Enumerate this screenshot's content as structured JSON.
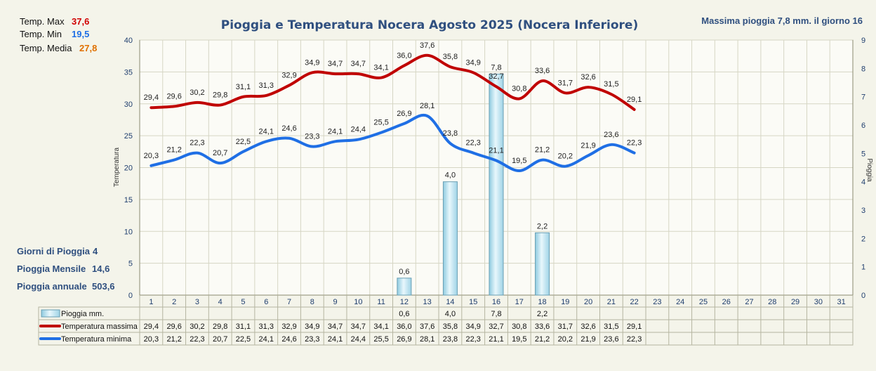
{
  "header": {
    "title": "Pioggia e Temperatura Nocera Agosto 2025 (Nocera Inferiore)",
    "max_rain": "Massima pioggia    7,8  mm. il giorno 16"
  },
  "summary": {
    "tmax_label": "Temp. Max",
    "tmax_value": "37,6",
    "tmin_label": "Temp.  Min",
    "tmin_value": "19,5",
    "tavg_label": "Temp. Media",
    "tavg_value": "27,8",
    "rain_days_label": "Giorni di Pioggia",
    "rain_days_value": "4",
    "rain_month_label": "Pioggia Mensile",
    "rain_month_value": "14,6",
    "rain_year_label": "Pioggia annuale",
    "rain_year_value": "503,6"
  },
  "colors": {
    "max_line": "#c00000",
    "min_line": "#1f6fe5",
    "bar_fill": "#bfe6f2",
    "title": "#2f4f7f",
    "background": "#f4f4ea"
  },
  "chart_data": {
    "type": "line",
    "title": "Pioggia e Temperatura Nocera Agosto 2025 (Nocera Inferiore)",
    "ylabel": "Temperatura",
    "y2label": "Pioggia",
    "ylim": [
      0,
      40
    ],
    "yticks": [
      0,
      5,
      10,
      15,
      20,
      25,
      30,
      35,
      40
    ],
    "y2lim": [
      0,
      9
    ],
    "y2ticks": [
      0,
      1,
      2,
      3,
      4,
      5,
      6,
      7,
      8,
      9
    ],
    "grid": true,
    "categories": [
      "1",
      "2",
      "3",
      "4",
      "5",
      "6",
      "7",
      "8",
      "9",
      "10",
      "11",
      "12",
      "13",
      "14",
      "15",
      "16",
      "17",
      "18",
      "19",
      "20",
      "21",
      "22",
      "23",
      "24",
      "25",
      "26",
      "27",
      "28",
      "29",
      "30",
      "31"
    ],
    "series": [
      {
        "name": "Pioggia mm.",
        "type": "bar",
        "axis": "right",
        "values": [
          null,
          null,
          null,
          null,
          null,
          null,
          null,
          null,
          null,
          null,
          null,
          0.6,
          null,
          4.0,
          null,
          7.8,
          null,
          2.2,
          null,
          null,
          null,
          null,
          null,
          null,
          null,
          null,
          null,
          null,
          null,
          null,
          null
        ],
        "labels": [
          "",
          "",
          "",
          "",
          "",
          "",
          "",
          "",
          "",
          "",
          "",
          "0,6",
          "",
          "4,0",
          "",
          "7,8",
          "",
          "2,2",
          "",
          "",
          "",
          "",
          "",
          "",
          "",
          "",
          "",
          "",
          "",
          "",
          ""
        ]
      },
      {
        "name": "Temperatura massima",
        "type": "line",
        "axis": "left",
        "values": [
          29.4,
          29.6,
          30.2,
          29.8,
          31.1,
          31.3,
          32.9,
          34.9,
          34.7,
          34.7,
          34.1,
          36.0,
          37.6,
          35.8,
          34.9,
          32.7,
          30.8,
          33.6,
          31.7,
          32.6,
          31.5,
          29.1,
          null,
          null,
          null,
          null,
          null,
          null,
          null,
          null,
          null
        ],
        "labels": [
          "29,4",
          "29,6",
          "30,2",
          "29,8",
          "31,1",
          "31,3",
          "32,9",
          "34,9",
          "34,7",
          "34,7",
          "34,1",
          "36,0",
          "37,6",
          "35,8",
          "34,9",
          "32,7",
          "30,8",
          "33,6",
          "31,7",
          "32,6",
          "31,5",
          "29,1",
          "",
          "",
          "",
          "",
          "",
          "",
          "",
          "",
          ""
        ]
      },
      {
        "name": "Temperatura minima",
        "type": "line",
        "axis": "left",
        "values": [
          20.3,
          21.2,
          22.3,
          20.7,
          22.5,
          24.1,
          24.6,
          23.3,
          24.1,
          24.4,
          25.5,
          26.9,
          28.1,
          23.8,
          22.3,
          21.1,
          19.5,
          21.2,
          20.2,
          21.9,
          23.6,
          22.3,
          null,
          null,
          null,
          null,
          null,
          null,
          null,
          null,
          null
        ],
        "labels": [
          "20,3",
          "21,2",
          "22,3",
          "20,7",
          "22,5",
          "24,1",
          "24,6",
          "23,3",
          "24,1",
          "24,4",
          "25,5",
          "26,9",
          "28,1",
          "23,8",
          "22,3",
          "21,1",
          "19,5",
          "21,2",
          "20,2",
          "21,9",
          "23,6",
          "22,3",
          "",
          "",
          "",
          "",
          "",
          "",
          "",
          "",
          ""
        ]
      }
    ]
  }
}
